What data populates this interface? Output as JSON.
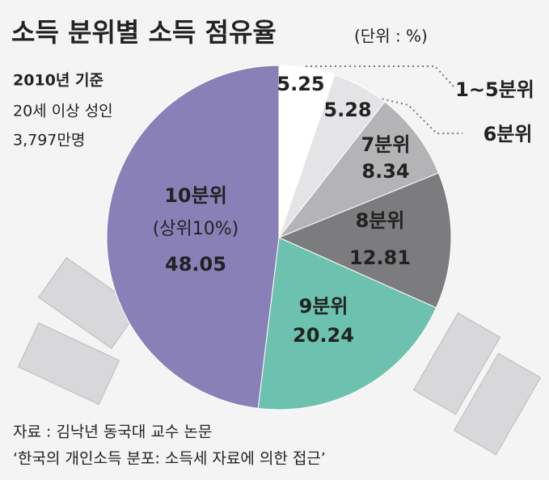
{
  "chart_data": {
    "type": "pie",
    "title": "소득 분위별 소득 점유율",
    "subtitle": "(단위 : %)",
    "notes": [
      "2010년 기준",
      "20세 이상 성인",
      "3,797만명"
    ],
    "categories": [
      "1~5분위",
      "6분위",
      "7분위",
      "8분위",
      "9분위",
      "10분위"
    ],
    "annotation": "(상위10%)",
    "values": [
      5.25,
      5.28,
      8.34,
      12.81,
      20.24,
      48.05
    ],
    "colors": [
      "#ffffff",
      "#e4e4e6",
      "#b4b4b6",
      "#7c7c7e",
      "#6cc2ae",
      "#8a80b8"
    ],
    "source": [
      "자료 : 김낙년 동국대 교수 논문",
      "‘한국의 개인소득 분포: 소득세 자료에 의한 접근’"
    ]
  }
}
